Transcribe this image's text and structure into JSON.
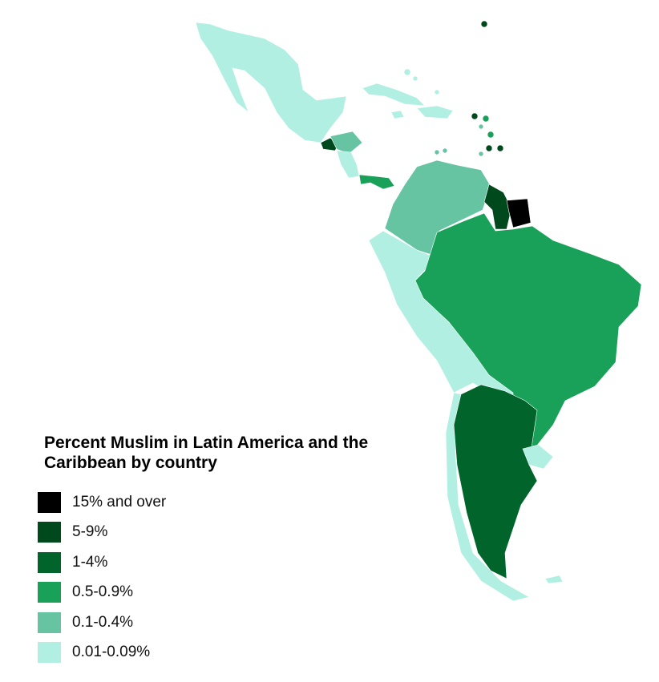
{
  "title": "Percent Muslim in Latin America and the Caribbean by country",
  "legend": [
    {
      "label": "15% and over",
      "color": "#000000"
    },
    {
      "label": "5-9%",
      "color": "#00491c"
    },
    {
      "label": "1-4%",
      "color": "#00642b"
    },
    {
      "label": "0.5-0.9%",
      "color": "#19a159"
    },
    {
      "label": "0.1-0.4%",
      "color": "#66c4a3"
    },
    {
      "label": "0.01-0.09%",
      "color": "#b2efe3"
    }
  ]
}
